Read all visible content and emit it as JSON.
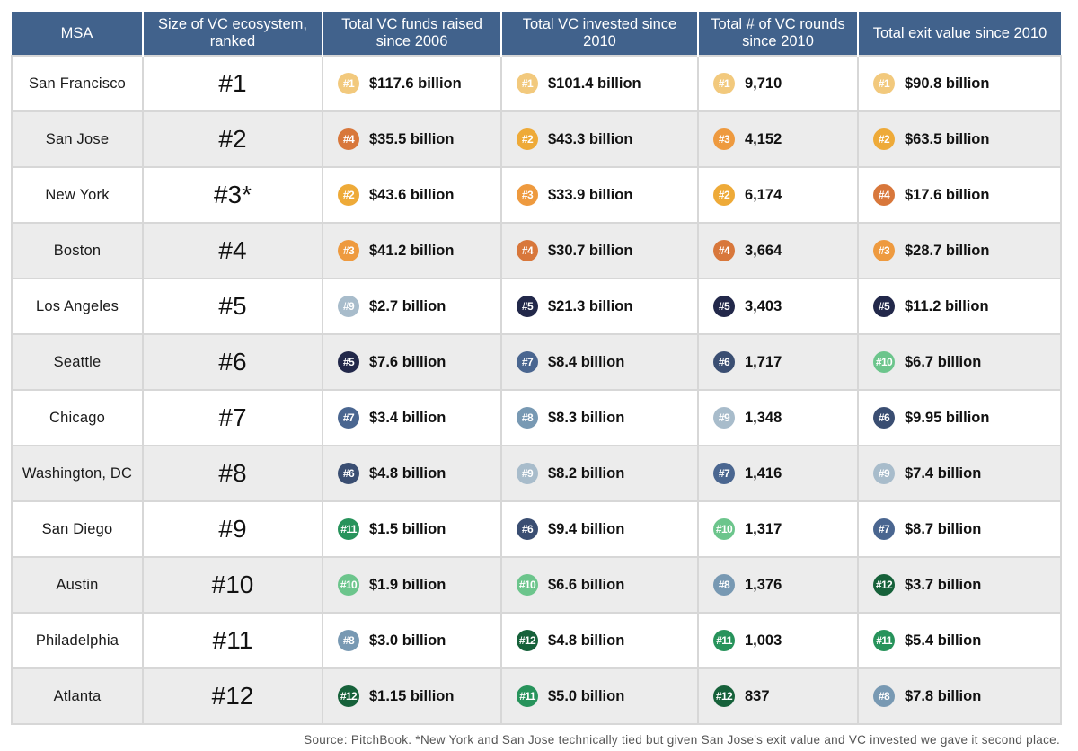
{
  "headers": [
    "MSA",
    "Size of VC ecosystem, ranked",
    "Total VC funds raised since 2006",
    "Total VC invested since 2010",
    "Total # of VC rounds since 2010",
    "Total exit value since 2010"
  ],
  "rank_colors": {
    "1": "#f2c97d",
    "2": "#eeaa38",
    "3": "#ee9a3f",
    "4": "#d8773b",
    "5": "#22284a",
    "6": "#3a4e72",
    "7": "#4a6690",
    "8": "#7899b3",
    "9": "#a8bccb",
    "10": "#6cc58c",
    "11": "#27935b",
    "12": "#16613a"
  },
  "rows": [
    {
      "msa": "San Francisco",
      "size": "#1",
      "metrics": [
        {
          "rank": 1,
          "label": "#1",
          "value": "$117.6 billion"
        },
        {
          "rank": 1,
          "label": "#1",
          "value": "$101.4 billion"
        },
        {
          "rank": 1,
          "label": "#1",
          "value": "9,710"
        },
        {
          "rank": 1,
          "label": "#1",
          "value": "$90.8 billion"
        }
      ]
    },
    {
      "msa": "San Jose",
      "size": "#2",
      "metrics": [
        {
          "rank": 4,
          "label": "#4",
          "value": "$35.5 billion"
        },
        {
          "rank": 2,
          "label": "#2",
          "value": "$43.3 billion"
        },
        {
          "rank": 3,
          "label": "#3",
          "value": "4,152"
        },
        {
          "rank": 2,
          "label": "#2",
          "value": "$63.5 billion"
        }
      ]
    },
    {
      "msa": "New York",
      "size": "#3*",
      "metrics": [
        {
          "rank": 2,
          "label": "#2",
          "value": "$43.6 billion"
        },
        {
          "rank": 3,
          "label": "#3",
          "value": "$33.9 billion"
        },
        {
          "rank": 2,
          "label": "#2",
          "value": "6,174"
        },
        {
          "rank": 4,
          "label": "#4",
          "value": "$17.6 billion"
        }
      ]
    },
    {
      "msa": "Boston",
      "size": "#4",
      "metrics": [
        {
          "rank": 3,
          "label": "#3",
          "value": "$41.2 billion"
        },
        {
          "rank": 4,
          "label": "#4",
          "value": "$30.7 billion"
        },
        {
          "rank": 4,
          "label": "#4",
          "value": "3,664"
        },
        {
          "rank": 3,
          "label": "#3",
          "value": "$28.7 billion"
        }
      ]
    },
    {
      "msa": "Los Angeles",
      "size": "#5",
      "metrics": [
        {
          "rank": 9,
          "label": "#9",
          "value": "$2.7 billion"
        },
        {
          "rank": 5,
          "label": "#5",
          "value": "$21.3 billion"
        },
        {
          "rank": 5,
          "label": "#5",
          "value": "3,403"
        },
        {
          "rank": 5,
          "label": "#5",
          "value": "$11.2 billion"
        }
      ]
    },
    {
      "msa": "Seattle",
      "size": "#6",
      "metrics": [
        {
          "rank": 5,
          "label": "#5",
          "value": "$7.6 billion"
        },
        {
          "rank": 7,
          "label": "#7",
          "value": "$8.4 billion"
        },
        {
          "rank": 6,
          "label": "#6",
          "value": "1,717"
        },
        {
          "rank": 10,
          "label": "#10",
          "value": "$6.7 billion"
        }
      ]
    },
    {
      "msa": "Chicago",
      "size": "#7",
      "metrics": [
        {
          "rank": 7,
          "label": "#7",
          "value": "$3.4 billion"
        },
        {
          "rank": 8,
          "label": "#8",
          "value": "$8.3 billion"
        },
        {
          "rank": 9,
          "label": "#9",
          "value": "1,348"
        },
        {
          "rank": 6,
          "label": "#6",
          "value": "$9.95 billion"
        }
      ]
    },
    {
      "msa": "Washington, DC",
      "size": "#8",
      "metrics": [
        {
          "rank": 6,
          "label": "#6",
          "value": "$4.8 billion"
        },
        {
          "rank": 9,
          "label": "#9",
          "value": "$8.2 billion"
        },
        {
          "rank": 7,
          "label": "#7",
          "value": "1,416"
        },
        {
          "rank": 9,
          "label": "#9",
          "value": "$7.4 billion"
        }
      ]
    },
    {
      "msa": "San Diego",
      "size": "#9",
      "metrics": [
        {
          "rank": 11,
          "label": "#11",
          "value": "$1.5 billion"
        },
        {
          "rank": 6,
          "label": "#6",
          "value": "$9.4 billion"
        },
        {
          "rank": 10,
          "label": "#10",
          "value": "1,317"
        },
        {
          "rank": 7,
          "label": "#7",
          "value": "$8.7 billion"
        }
      ]
    },
    {
      "msa": "Austin",
      "size": "#10",
      "metrics": [
        {
          "rank": 10,
          "label": "#10",
          "value": "$1.9 billion"
        },
        {
          "rank": 10,
          "label": "#10",
          "value": "$6.6 billion"
        },
        {
          "rank": 8,
          "label": "#8",
          "value": "1,376"
        },
        {
          "rank": 12,
          "label": "#12",
          "value": "$3.7 billion"
        }
      ]
    },
    {
      "msa": "Philadelphia",
      "size": "#11",
      "metrics": [
        {
          "rank": 8,
          "label": "#8",
          "value": "$3.0 billion"
        },
        {
          "rank": 12,
          "label": "#12",
          "value": "$4.8 billion"
        },
        {
          "rank": 11,
          "label": "#11",
          "value": "1,003"
        },
        {
          "rank": 11,
          "label": "#11",
          "value": "$5.4 billion"
        }
      ]
    },
    {
      "msa": "Atlanta",
      "size": "#12",
      "metrics": [
        {
          "rank": 12,
          "label": "#12",
          "value": "$1.15 billion"
        },
        {
          "rank": 11,
          "label": "#11",
          "value": "$5.0 billion"
        },
        {
          "rank": 12,
          "label": "#12",
          "value": "837"
        },
        {
          "rank": 8,
          "label": "#8",
          "value": "$7.8 billion"
        }
      ]
    }
  ],
  "footnote": "Source: PitchBook. *New York and San Jose technically tied but given San Jose's exit value and VC invested we gave it second place."
}
